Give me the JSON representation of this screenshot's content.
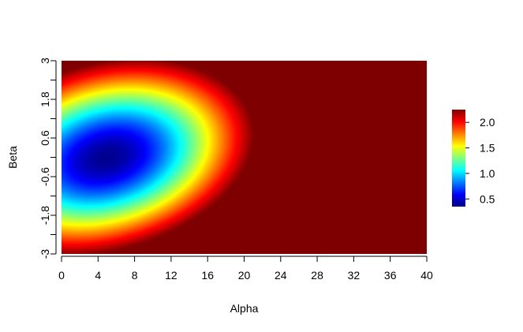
{
  "chart_data": {
    "type": "heatmap",
    "title": "",
    "xlabel": "Alpha",
    "ylabel": "Beta",
    "xlim": [
      0,
      40
    ],
    "ylim": [
      -3,
      3
    ],
    "x_ticks": [
      0,
      4,
      8,
      12,
      16,
      20,
      24,
      28,
      32,
      36,
      40
    ],
    "x_tick_labels": [
      "0",
      "4",
      "8",
      "12",
      "16",
      "20",
      "24",
      "28",
      "32",
      "36",
      "40"
    ],
    "y_ticks": [
      -3,
      -2.4,
      -1.8,
      -1.2,
      -0.6,
      0,
      0.6,
      1.2,
      1.8,
      2.4,
      3
    ],
    "y_tick_labels": [
      "-3",
      "-1.8",
      "-0.6",
      "0.6",
      "1.8",
      "3"
    ],
    "y_labeled_ticks": [
      -3,
      -1.8,
      -0.6,
      0.6,
      1.8,
      3
    ],
    "z_range": [
      0.35,
      2.25
    ],
    "colormap": [
      "#00007F",
      "#0000FF",
      "#007FFF",
      "#00FFFF",
      "#7FFF7F",
      "#FFFF00",
      "#FF7F00",
      "#FF0000",
      "#7F0000"
    ],
    "colorbar": {
      "ticks": [
        0.5,
        1.0,
        1.5,
        2.0
      ],
      "tick_labels": [
        "0.5",
        "1.0",
        "1.5",
        "2.0"
      ]
    },
    "grid": false,
    "legend": "colorbar right"
  }
}
